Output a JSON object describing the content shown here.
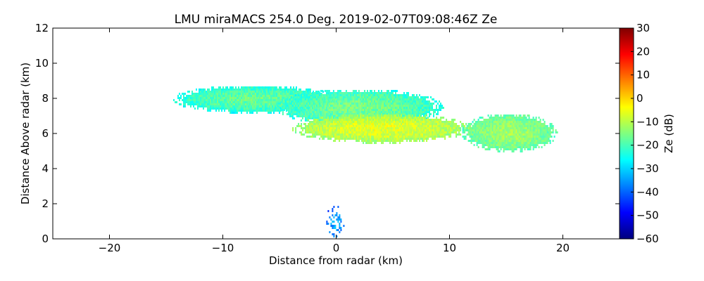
{
  "chart_data": {
    "type": "heatmap",
    "title": "LMU miraMACS 254.0 Deg. 2019-02-07T09:08:46Z  Ze",
    "xlabel": "Distance from radar (km)",
    "ylabel": "Distance Above radar  (km)",
    "xlim": [
      -25,
      25
    ],
    "ylim": [
      0,
      12
    ],
    "xticks": [
      -20,
      -10,
      0,
      10,
      20
    ],
    "yticks": [
      0,
      2,
      4,
      6,
      8,
      10,
      12
    ],
    "colorbar": {
      "label": "Ze (dB)",
      "range": [
        -60,
        30
      ],
      "ticks": [
        -60,
        -50,
        -40,
        -30,
        -20,
        -10,
        0,
        10,
        20,
        30
      ],
      "colormap": "jet"
    },
    "grid": false,
    "echo_regions": [
      {
        "x": [
          -14.5,
          0
        ],
        "y": [
          7.2,
          8.8
        ],
        "ze": -25
      },
      {
        "x": [
          -5.5,
          9.5
        ],
        "y": [
          6.5,
          8.6
        ],
        "ze": -24
      },
      {
        "x": [
          -4,
          12
        ],
        "y": [
          5.5,
          7.2
        ],
        "ze": -14
      },
      {
        "x": [
          11,
          19.5
        ],
        "y": [
          5,
          7.2
        ],
        "ze": -20
      },
      {
        "x": [
          -1,
          0.8
        ],
        "y": [
          0,
          2
        ],
        "ze": -42
      }
    ]
  },
  "colors": {
    "background": "#ffffff",
    "axes": "#000000"
  }
}
